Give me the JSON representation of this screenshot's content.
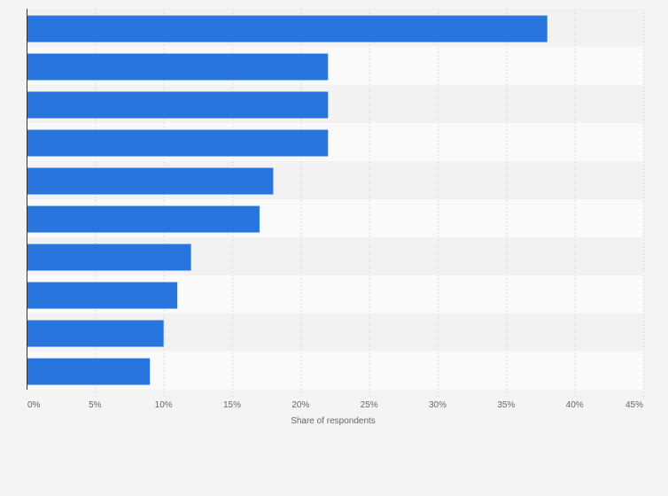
{
  "colors": {
    "background": "#f4f4f4",
    "bar": "#2876dd",
    "band_light": "#fafafa",
    "band_dark": "#f2f2f2",
    "gridline": "#dcdcdc",
    "axis": "#333333",
    "text": "#666666"
  },
  "chart_data": {
    "type": "bar",
    "orientation": "horizontal",
    "title": "",
    "xlabel": "Share of respondents",
    "ylabel": "",
    "xlim": [
      0,
      45
    ],
    "x_ticks": [
      0,
      5,
      10,
      15,
      20,
      25,
      30,
      35,
      40,
      45
    ],
    "x_tick_labels": [
      "0%",
      "5%",
      "10%",
      "15%",
      "20%",
      "25%",
      "30%",
      "35%",
      "40%",
      "45%"
    ],
    "categories": [
      "",
      "",
      "",
      "",
      "",
      "",
      "",
      "",
      "",
      ""
    ],
    "values": [
      38,
      22,
      22,
      22,
      18,
      17,
      12,
      11,
      10,
      9
    ],
    "unit": "%",
    "grid": true,
    "legend": "none"
  }
}
